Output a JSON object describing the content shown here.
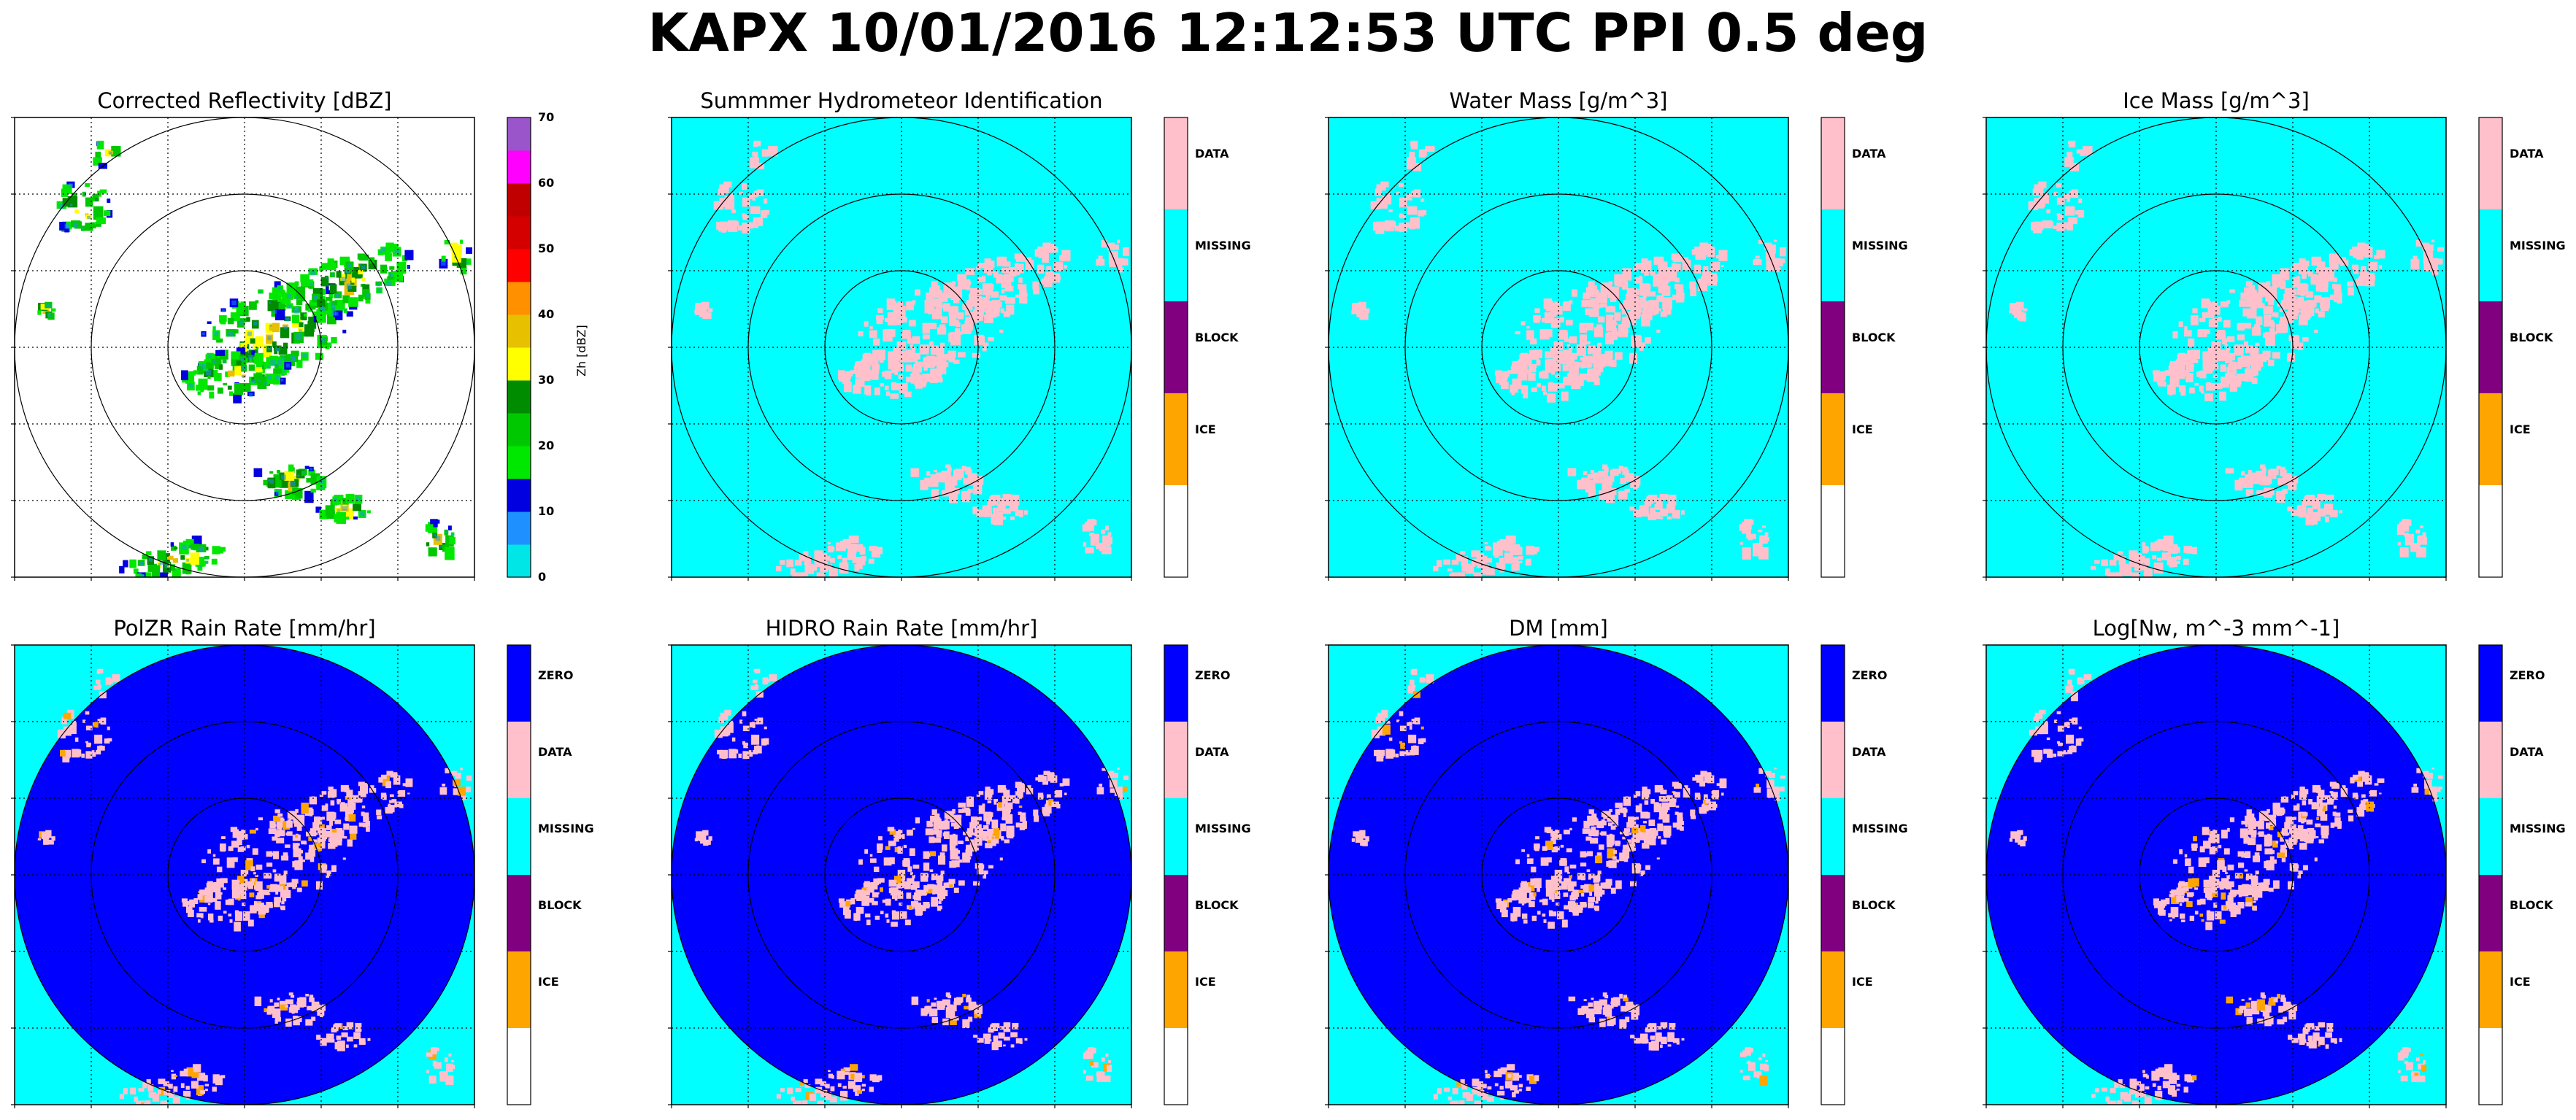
{
  "figure": {
    "suptitle": "KAPX 10/01/2016 12:12:53 UTC PPI 0.5 deg"
  },
  "colors": {
    "zero": "#0000ff",
    "data": "#ffc0cb",
    "missing": "#00ffff",
    "block": "#800080",
    "ice": "#ffa500",
    "empty": "#ffffff"
  },
  "chart_data": [
    {
      "type": "heatmap",
      "title": "Corrected Reflectivity [dBZ]",
      "colorbar": {
        "kind": "continuous",
        "label": "Zh [dBZ]",
        "range": [
          0,
          70
        ],
        "ticks": [
          "0",
          "10",
          "20",
          "30",
          "40",
          "50",
          "60",
          "70"
        ],
        "colors": [
          "#00e5e5",
          "#1e90ff",
          "#0000e0",
          "#00e800",
          "#00c800",
          "#008c00",
          "#ffff00",
          "#e7c000",
          "#ff9000",
          "#ff0000",
          "#d40000",
          "#c00000",
          "#ff00ff",
          "#9955c9"
        ]
      }
    },
    {
      "type": "heatmap",
      "title": "Summmer Hydrometeor Identification",
      "colorbar": {
        "kind": "categorical",
        "labels": [
          "DATA",
          "MISSING",
          "BLOCK",
          "ICE",
          ""
        ]
      }
    },
    {
      "type": "heatmap",
      "title": "Water Mass [g/m^3]",
      "colorbar": {
        "kind": "categorical",
        "labels": [
          "DATA",
          "MISSING",
          "BLOCK",
          "ICE",
          ""
        ]
      }
    },
    {
      "type": "heatmap",
      "title": "Ice Mass [g/m^3]",
      "colorbar": {
        "kind": "categorical",
        "labels": [
          "DATA",
          "MISSING",
          "BLOCK",
          "ICE",
          ""
        ]
      }
    },
    {
      "type": "heatmap",
      "title": "PolZR Rain Rate [mm/hr]",
      "colorbar": {
        "kind": "categorical",
        "labels": [
          "ZERO",
          "DATA",
          "MISSING",
          "BLOCK",
          "ICE",
          ""
        ]
      }
    },
    {
      "type": "heatmap",
      "title": "HIDRO Rain Rate [mm/hr]",
      "colorbar": {
        "kind": "categorical",
        "labels": [
          "ZERO",
          "DATA",
          "MISSING",
          "BLOCK",
          "ICE",
          ""
        ]
      }
    },
    {
      "type": "heatmap",
      "title": "DM [mm]",
      "colorbar": {
        "kind": "categorical",
        "labels": [
          "ZERO",
          "DATA",
          "MISSING",
          "BLOCK",
          "ICE",
          ""
        ]
      }
    },
    {
      "type": "heatmap",
      "title": "Log[Nw, m^-3 mm^-1]",
      "colorbar": {
        "kind": "categorical",
        "labels": [
          "ZERO",
          "DATA",
          "MISSING",
          "BLOCK",
          "ICE",
          ""
        ]
      }
    }
  ]
}
